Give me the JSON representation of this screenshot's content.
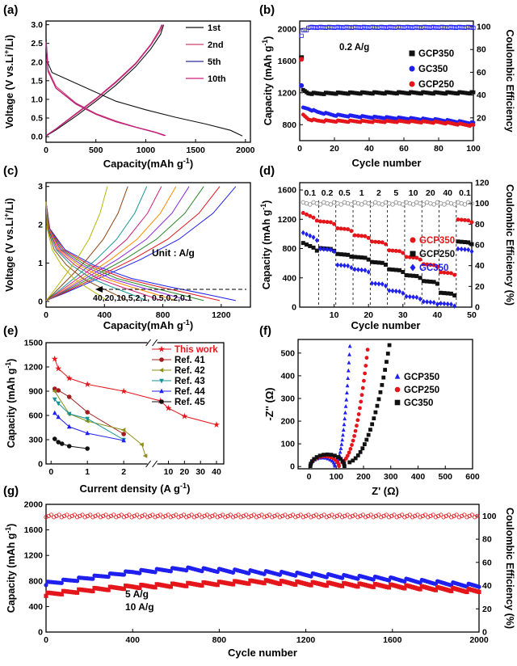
{
  "colors": {
    "black": "#111111",
    "red": "#e4161b",
    "blue": "#1f1ff0",
    "pink": "#d0406a",
    "navy": "#2c2f9e",
    "magenta": "#d11c7a",
    "darkred": "#a11c1c",
    "olive": "#8d8f16",
    "teal": "#169494",
    "gray": "#888888"
  },
  "chart_data": [
    {
      "panel": "(a)",
      "type": "line",
      "xlabel": "Capacity(mAh g-1)",
      "ylabel": "Voltage (V vs.Li+/Li)",
      "xlim": [
        0,
        2050
      ],
      "ylim": [
        -0.15,
        3.1
      ],
      "xticks": [
        "0",
        "500",
        "1000",
        "1500",
        "2000"
      ],
      "yticks": [
        "0.0",
        "0.5",
        "1.0",
        "1.5",
        "2.0",
        "2.5",
        "3.0"
      ],
      "legend_position": "top-right",
      "series": [
        {
          "name": "1st",
          "color": "#111111",
          "discharge": [
            [
              0,
              2.65
            ],
            [
              15,
              2.0
            ],
            [
              60,
              1.72
            ],
            [
              200,
              1.55
            ],
            [
              450,
              1.25
            ],
            [
              700,
              0.95
            ],
            [
              1000,
              0.72
            ],
            [
              1300,
              0.52
            ],
            [
              1600,
              0.34
            ],
            [
              1850,
              0.17
            ],
            [
              1970,
              0.02
            ]
          ],
          "charge": [
            [
              0,
              0.02
            ],
            [
              100,
              0.18
            ],
            [
              300,
              0.55
            ],
            [
              500,
              0.95
            ],
            [
              700,
              1.38
            ],
            [
              900,
              1.88
            ],
            [
              1050,
              2.35
            ],
            [
              1150,
              2.75
            ],
            [
              1180,
              3.0
            ]
          ]
        },
        {
          "name": "2nd",
          "color": "#d0406a",
          "discharge": [
            [
              0,
              2.55
            ],
            [
              20,
              1.8
            ],
            [
              100,
              1.35
            ],
            [
              300,
              0.9
            ],
            [
              500,
              0.62
            ],
            [
              700,
              0.42
            ],
            [
              900,
              0.26
            ],
            [
              1100,
              0.12
            ],
            [
              1200,
              0.03
            ]
          ],
          "charge": [
            [
              0,
              0.03
            ],
            [
              100,
              0.2
            ],
            [
              300,
              0.6
            ],
            [
              500,
              1.0
            ],
            [
              700,
              1.45
            ],
            [
              900,
              1.95
            ],
            [
              1050,
              2.45
            ],
            [
              1150,
              2.85
            ],
            [
              1175,
              3.0
            ]
          ]
        },
        {
          "name": "5th",
          "color": "#2c2f9e",
          "discharge": [
            [
              0,
              2.5
            ],
            [
              20,
              1.75
            ],
            [
              100,
              1.3
            ],
            [
              300,
              0.88
            ],
            [
              500,
              0.6
            ],
            [
              700,
              0.4
            ],
            [
              900,
              0.25
            ],
            [
              1100,
              0.11
            ],
            [
              1190,
              0.03
            ]
          ],
          "charge": [
            [
              0,
              0.03
            ],
            [
              100,
              0.21
            ],
            [
              300,
              0.62
            ],
            [
              500,
              1.02
            ],
            [
              700,
              1.47
            ],
            [
              900,
              1.97
            ],
            [
              1050,
              2.47
            ],
            [
              1140,
              2.87
            ],
            [
              1165,
              3.0
            ]
          ]
        },
        {
          "name": "10th",
          "color": "#d11c7a",
          "discharge": [
            [
              0,
              2.5
            ],
            [
              20,
              1.75
            ],
            [
              100,
              1.3
            ],
            [
              300,
              0.87
            ],
            [
              500,
              0.6
            ],
            [
              700,
              0.4
            ],
            [
              900,
              0.25
            ],
            [
              1100,
              0.11
            ],
            [
              1185,
              0.03
            ]
          ],
          "charge": [
            [
              0,
              0.03
            ],
            [
              100,
              0.21
            ],
            [
              300,
              0.62
            ],
            [
              500,
              1.02
            ],
            [
              700,
              1.47
            ],
            [
              900,
              1.97
            ],
            [
              1050,
              2.47
            ],
            [
              1140,
              2.87
            ],
            [
              1160,
              3.0
            ]
          ]
        }
      ]
    },
    {
      "panel": "(b)",
      "type": "scatter",
      "xlabel": "Cycle number",
      "ylabel": "Capacity (mAh g-1)",
      "y2label": "Coulombic Efficiency",
      "xlim": [
        0,
        100
      ],
      "ylim": [
        600,
        2100
      ],
      "y2lim": [
        0,
        105
      ],
      "xticks": [
        "0",
        "20",
        "40",
        "60",
        "80",
        "100"
      ],
      "yticks": [
        "800",
        "1200",
        "1600",
        "2000"
      ],
      "y2ticks": [
        "20",
        "40",
        "60",
        "80",
        "100"
      ],
      "annotation": "0.2 A/g",
      "series": [
        {
          "name": "GCP350",
          "color": "#111111",
          "marker": "square",
          "first": 1640,
          "points": [
            [
              2,
              1230
            ],
            [
              5,
              1195
            ],
            [
              10,
              1190
            ],
            [
              20,
              1195
            ],
            [
              40,
              1198
            ],
            [
              60,
              1200
            ],
            [
              80,
              1198
            ],
            [
              100,
              1200
            ]
          ]
        },
        {
          "name": "GC350",
          "color": "#1f1ff0",
          "marker": "circle",
          "first": 1290,
          "points": [
            [
              2,
              1010
            ],
            [
              5,
              1000
            ],
            [
              10,
              960
            ],
            [
              20,
              920
            ],
            [
              40,
              895
            ],
            [
              60,
              880
            ],
            [
              80,
              860
            ],
            [
              100,
              820
            ]
          ]
        },
        {
          "name": "GCP250",
          "color": "#e4161b",
          "marker": "circle",
          "first": 1620,
          "points": [
            [
              2,
              920
            ],
            [
              5,
              870
            ],
            [
              10,
              850
            ],
            [
              20,
              845
            ],
            [
              40,
              840
            ],
            [
              60,
              840
            ],
            [
              80,
              830
            ],
            [
              100,
              790
            ]
          ]
        }
      ],
      "efficiency": {
        "color": "#1f1ff0",
        "points": [
          [
            1,
            92
          ],
          [
            2,
            97
          ],
          [
            5,
            99
          ],
          [
            100,
            99.5
          ]
        ]
      }
    },
    {
      "panel": "(c)",
      "type": "line",
      "xlabel": "Capacity(mAh g-1)",
      "ylabel": "Voltage (V vs.Li+/Li)",
      "xlim": [
        0,
        1400
      ],
      "ylim": [
        -0.15,
        3.1
      ],
      "xticks": [
        "0",
        "400",
        "800",
        "1200"
      ],
      "yticks": [
        "0",
        "1",
        "2",
        "3"
      ],
      "annotation": "Unit :  A/g",
      "rate_label": "40,20,10,5,2,1,  0.5,0.2,0.1",
      "curves": [
        {
          "rate": "0.1",
          "cap": 1300,
          "color": "#1f1ff0"
        },
        {
          "rate": "0.2",
          "cap": 1190,
          "color": "#e4161b"
        },
        {
          "rate": "0.5",
          "cap": 1080,
          "color": "#2b8a2b"
        },
        {
          "rate": "1",
          "cap": 980,
          "color": "#8a2be2"
        },
        {
          "rate": "2",
          "cap": 890,
          "color": "#ff8c00"
        },
        {
          "rate": "5",
          "cap": 790,
          "color": "#d11c7a"
        },
        {
          "rate": "10",
          "cap": 690,
          "color": "#169494"
        },
        {
          "rate": "20",
          "cap": 560,
          "color": "#8b4513"
        },
        {
          "rate": "40",
          "cap": 420,
          "color": "#b8b80a"
        }
      ]
    },
    {
      "panel": "(d)",
      "type": "scatter",
      "xlabel": "Cycle number",
      "ylabel": "Capacity (mAh g-1)",
      "y2label": "Coulombic Efficiency (%)",
      "xlim": [
        0,
        50
      ],
      "ylim": [
        0,
        1700
      ],
      "y2lim": [
        0,
        120
      ],
      "xticks": [
        "10",
        "20",
        "30",
        "40",
        "50"
      ],
      "yticks": [
        "0",
        "400",
        "800",
        "1200",
        "1600"
      ],
      "y2ticks": [
        "0",
        "20",
        "40",
        "60",
        "80",
        "100",
        "120"
      ],
      "rates": [
        "0.1",
        "0.2",
        "0.5",
        "1",
        "2",
        "5",
        "10",
        "20",
        "40",
        "0.1"
      ],
      "rate_boundaries": [
        5,
        10,
        15,
        20,
        25,
        30,
        35,
        40,
        45
      ],
      "series": [
        {
          "name": "GCP350",
          "color": "#e4161b",
          "marker": "circle",
          "levels": [
            1290,
            1175,
            1080,
            985,
            900,
            780,
            690,
            590,
            480,
            1200
          ]
        },
        {
          "name": "GCP250",
          "color": "#111111",
          "marker": "square",
          "levels": [
            880,
            810,
            730,
            690,
            620,
            520,
            440,
            360,
            200,
            900
          ]
        },
        {
          "name": "GC350",
          "color": "#1f1ff0",
          "marker": "diamond",
          "levels": [
            1020,
            800,
            580,
            520,
            330,
            230,
            150,
            80,
            55,
            800
          ]
        }
      ],
      "efficiency": {
        "color": "#888888",
        "value": 100
      }
    },
    {
      "panel": "(e)",
      "type": "line",
      "xlabel": "Current density (A g-1)",
      "ylabel": "Capacity (mAh g-1)",
      "ylim": [
        0,
        1500
      ],
      "yticks": [
        "0",
        "300",
        "600",
        "900",
        "1200",
        "1500"
      ],
      "xticks": [
        "0",
        "1",
        "2",
        "10",
        "20",
        "30",
        "40"
      ],
      "x_break": "after 2.6",
      "series": [
        {
          "name": "This work",
          "color": "#e4161b",
          "marker": "star",
          "points": [
            [
              0.1,
              1300
            ],
            [
              0.2,
              1180
            ],
            [
              0.5,
              1060
            ],
            [
              1,
              985
            ],
            [
              2,
              900
            ],
            [
              5,
              780
            ],
            [
              10,
              690
            ],
            [
              20,
              590
            ],
            [
              40,
              485
            ]
          ]
        },
        {
          "name": "Ref. 41",
          "color": "#a11c1c",
          "marker": "circle",
          "points": [
            [
              0.1,
              930
            ],
            [
              0.2,
              910
            ],
            [
              0.5,
              830
            ],
            [
              1,
              640
            ],
            [
              2,
              370
            ]
          ]
        },
        {
          "name": "Ref. 42",
          "color": "#8d8f16",
          "marker": "triangle-left",
          "points": [
            [
              0.1,
              900
            ],
            [
              0.5,
              620
            ],
            [
              1,
              530
            ],
            [
              2,
              420
            ],
            [
              2.5,
              240
            ],
            [
              2.6,
              100
            ]
          ]
        },
        {
          "name": "Ref. 43",
          "color": "#169494",
          "marker": "triangle-down",
          "points": [
            [
              0.1,
              800
            ],
            [
              0.2,
              750
            ],
            [
              0.5,
              620
            ],
            [
              1,
              560
            ],
            [
              2,
              300
            ]
          ]
        },
        {
          "name": "Ref. 44",
          "color": "#1f1ff0",
          "marker": "triangle-up",
          "points": [
            [
              0.1,
              630
            ],
            [
              0.2,
              580
            ],
            [
              0.5,
              460
            ],
            [
              1,
              380
            ],
            [
              2,
              290
            ]
          ]
        },
        {
          "name": "Ref. 45",
          "color": "#111111",
          "marker": "circle",
          "points": [
            [
              0.1,
              310
            ],
            [
              0.2,
              270
            ],
            [
              0.3,
              250
            ],
            [
              0.5,
              220
            ],
            [
              1,
              190
            ]
          ]
        }
      ]
    },
    {
      "panel": "(f)",
      "type": "scatter",
      "xlabel": "Z' (Ω)",
      "ylabel": "-Z'' (Ω)",
      "xlim": [
        -40,
        600
      ],
      "ylim": [
        -10,
        560
      ],
      "xticks": [
        "0",
        "100",
        "200",
        "300",
        "400",
        "500",
        "600"
      ],
      "yticks": [
        "0",
        "100",
        "200",
        "300",
        "400",
        "500"
      ],
      "series": [
        {
          "name": "GCP350",
          "color": "#1f1ff0",
          "marker": "triangle",
          "semicircle_end": 95,
          "tail_end": [
            150,
            530
          ]
        },
        {
          "name": "GCP250",
          "color": "#e4161b",
          "marker": "circle",
          "semicircle_end": 110,
          "tail_end": [
            215,
            515
          ]
        },
        {
          "name": "GC350",
          "color": "#111111",
          "marker": "square",
          "semicircle_end": 130,
          "tail_end": [
            295,
            535
          ]
        }
      ]
    },
    {
      "panel": "(g)",
      "type": "scatter",
      "xlabel": "Cycle number",
      "ylabel": "Capacity (mAh g-1)",
      "y2label": "Coulombic Efficiency (%)",
      "xlim": [
        0,
        2000
      ],
      "ylim": [
        0,
        2000
      ],
      "y2lim": [
        0,
        110
      ],
      "xticks": [
        "0",
        "400",
        "800",
        "1200",
        "1600",
        "2000"
      ],
      "yticks": [
        "0",
        "400",
        "800",
        "1200",
        "1600",
        "2000"
      ],
      "y2ticks": [
        "0",
        "20",
        "40",
        "60",
        "80",
        "100"
      ],
      "series": [
        {
          "name": "5 A/g",
          "color": "#1f1ff0",
          "points": [
            [
              0,
              760
            ],
            [
              200,
              850
            ],
            [
              400,
              940
            ],
            [
              640,
              990
            ],
            [
              900,
              950
            ],
            [
              1200,
              900
            ],
            [
              1600,
              830
            ],
            [
              2000,
              720
            ]
          ]
        },
        {
          "name": "10 A/g",
          "color": "#e4161b",
          "points": [
            [
              0,
              590
            ],
            [
              200,
              660
            ],
            [
              400,
              710
            ],
            [
              700,
              750
            ],
            [
              1000,
              790
            ],
            [
              1200,
              760
            ],
            [
              1600,
              720
            ],
            [
              2000,
              640
            ]
          ]
        }
      ],
      "efficiency": {
        "color": "#e4161b",
        "value": 100
      }
    }
  ]
}
